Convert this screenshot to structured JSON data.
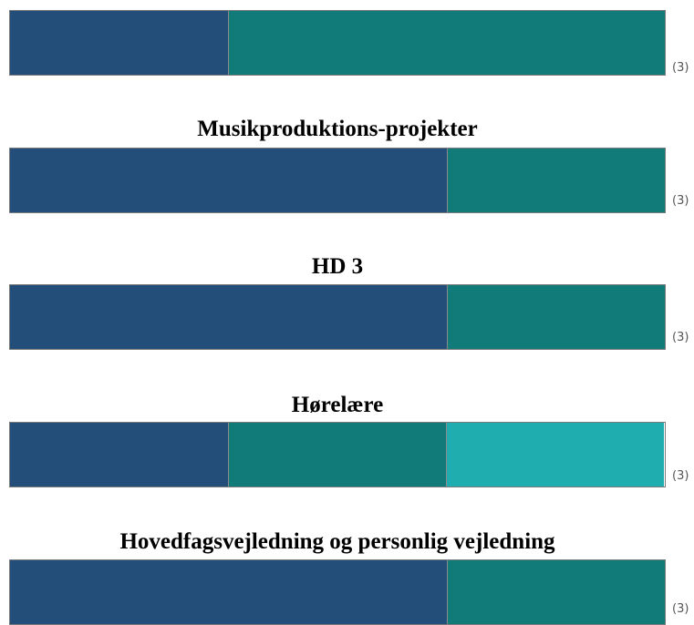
{
  "colors": {
    "seg1": "#234e79",
    "seg2": "#117b7a",
    "seg3": "#20adb0"
  },
  "chart_data": [
    {
      "type": "bar",
      "orientation": "horizontal-stacked-100",
      "title": "",
      "segments": [
        1,
        2,
        0
      ],
      "n": 3,
      "count_label": "(3)"
    },
    {
      "type": "bar",
      "orientation": "horizontal-stacked-100",
      "title": "Musikproduktions-projekter",
      "segments": [
        2,
        1,
        0
      ],
      "n": 3,
      "count_label": "(3)"
    },
    {
      "type": "bar",
      "orientation": "horizontal-stacked-100",
      "title": "HD 3",
      "segments": [
        2,
        1,
        0
      ],
      "n": 3,
      "count_label": "(3)"
    },
    {
      "type": "bar",
      "orientation": "horizontal-stacked-100",
      "title": "Hørelære",
      "segments": [
        1,
        1,
        1
      ],
      "n": 3,
      "count_label": "(3)"
    },
    {
      "type": "bar",
      "orientation": "horizontal-stacked-100",
      "title": "Hovedfagsvejledning og personlig vejledning",
      "segments": [
        2,
        1,
        0
      ],
      "n": 3,
      "count_label": "(3)"
    }
  ]
}
